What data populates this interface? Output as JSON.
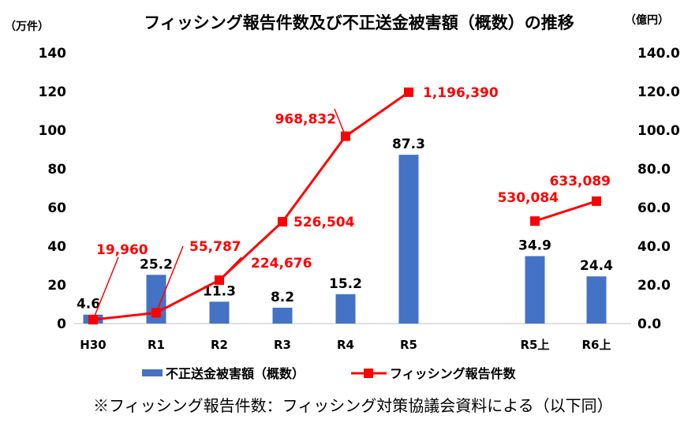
{
  "chart_data": {
    "type": "bar+line",
    "title": "フィッシング報告件数及び不正送金被害額（概数）の推移",
    "left_axis_unit": "（万件）",
    "right_axis_unit": "（億円）",
    "categories": [
      "H30",
      "R1",
      "R2",
      "R3",
      "R4",
      "R5",
      "",
      "R5上",
      "R6上"
    ],
    "left_axis": {
      "min": 0,
      "max": 140,
      "step": 20,
      "ticks": [
        "0",
        "20",
        "40",
        "60",
        "80",
        "100",
        "120",
        "140"
      ]
    },
    "right_axis": {
      "min": 0,
      "max": 140,
      "step": 20,
      "ticks": [
        "0.0",
        "20.0",
        "40.0",
        "60.0",
        "80.0",
        "100.0",
        "120.0",
        "140.0"
      ]
    },
    "bar_series": {
      "name": "不正送金被害額（概数）",
      "axis": "right",
      "color": "#4472C4",
      "values": [
        4.6,
        25.2,
        11.3,
        8.2,
        15.2,
        87.3,
        null,
        34.9,
        24.4
      ],
      "labels": [
        "4.6",
        "25.2",
        "11.3",
        "8.2",
        "15.2",
        "87.3",
        "",
        "34.9",
        "24.4"
      ]
    },
    "line_series": {
      "name": "フィッシング報告件数",
      "axis": "left",
      "color": "#FF0000",
      "values": [
        19960,
        55787,
        224676,
        526504,
        968832,
        1196390,
        null,
        530084,
        633089
      ],
      "labels": [
        "19,960",
        "55,787",
        "224,676",
        "526,504",
        "968,832",
        "1,196,390",
        "",
        "530,084",
        "633,089"
      ]
    },
    "legend_position": "bottom",
    "grid": false
  },
  "footnote": "※フィッシング報告件数：フィッシング対策協議会資料による（以下同）"
}
